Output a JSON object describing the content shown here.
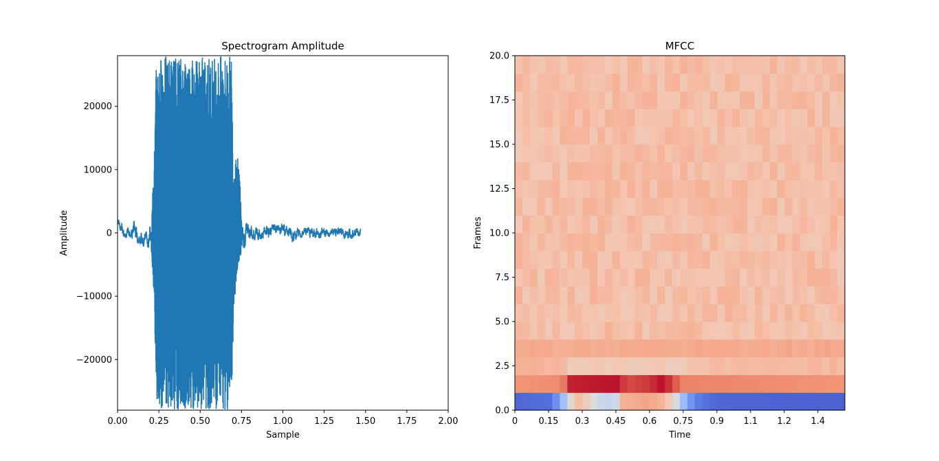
{
  "chart_data": [
    {
      "type": "line",
      "title": "Spectrogram Amplitude",
      "xlabel": "Sample",
      "ylabel": "Amplitude",
      "xlim": [
        0,
        2
      ],
      "ylim": [
        -28000,
        28000
      ],
      "x_ticks": [
        0,
        0.25,
        0.5,
        0.75,
        1.0,
        1.25,
        1.5,
        1.75,
        2.0
      ],
      "x_tick_labels": [
        "0.00",
        "0.25",
        "0.50",
        "0.75",
        "1.00",
        "1.25",
        "1.50",
        "1.75",
        "2.00"
      ],
      "y_ticks": [
        -20000,
        -10000,
        0,
        10000,
        20000
      ],
      "y_tick_labels": [
        "−20000",
        "−10000",
        "0",
        "10000",
        "20000"
      ],
      "color": "#1f77b4",
      "grid": false,
      "series": [
        {
          "envelope": {
            "x": [
              0,
              0.03,
              0.06,
              0.09,
              0.1,
              0.12,
              0.15,
              0.18,
              0.2,
              0.22,
              0.235,
              0.25,
              0.28,
              0.32,
              0.36,
              0.42,
              0.5,
              0.58,
              0.62,
              0.66,
              0.69,
              0.7,
              0.72,
              0.74,
              0.76,
              0.78,
              0.82,
              0.9,
              1.0,
              1.05,
              1.1,
              1.2,
              1.3,
              1.4,
              1.47
            ],
            "upper": [
              2800,
              1500,
              800,
              1200,
              3800,
              500,
              300,
              200,
              1500,
              9500,
              28000,
              28000,
              28000,
              28000,
              28000,
              28000,
              28000,
              28000,
              28000,
              28000,
              28000,
              10000,
              13500,
              9000,
              1200,
              1500,
              1000,
              1200,
              1500,
              600,
              700,
              900,
              700,
              700,
              700
            ],
            "lower": [
              1500,
              -500,
              -800,
              -1200,
              -500,
              -1500,
              -2000,
              -2000,
              -3500,
              -9500,
              -28000,
              -28000,
              -28000,
              -28000,
              -28000,
              -28000,
              -28000,
              -28000,
              -28000,
              -28000,
              -28000,
              -15000,
              -6500,
              -4000,
              -3000,
              -1500,
              -1200,
              -800,
              -300,
              -1600,
              -700,
              -800,
              -700,
              -900,
              -700
            ]
          }
        }
      ]
    },
    {
      "type": "heatmap",
      "title": "MFCC",
      "xlabel": "Time",
      "ylabel": "Frames",
      "xlim": [
        0,
        1.47
      ],
      "ylim": [
        0,
        20
      ],
      "x_ticks": [
        0,
        0.15,
        0.3,
        0.45,
        0.6,
        0.75,
        0.9,
        1.05,
        1.2,
        1.35
      ],
      "x_tick_labels": [
        "0",
        "0.15",
        "0.3",
        "0.45",
        "0.6",
        "0.75",
        "0.9",
        "1.1",
        "1.2",
        "1.4"
      ],
      "y_ticks": [
        0,
        2.5,
        5.0,
        7.5,
        10.0,
        12.5,
        15.0,
        17.5,
        20.0
      ],
      "y_tick_labels": [
        "0.0",
        "2.5",
        "5.0",
        "7.5",
        "10.0",
        "12.5",
        "15.0",
        "17.5",
        "20.0"
      ],
      "colormap": "coolwarm",
      "rows": 20,
      "cols": 44,
      "row_profiles": [
        {
          "row": 0,
          "values_by_time": {
            "x": [
              0,
              0.15,
              0.2,
              0.23,
              0.27,
              0.3,
              0.38,
              0.42,
              0.45,
              0.48,
              0.6,
              0.65,
              0.7,
              0.75,
              0.8,
              0.9,
              1.47
            ],
            "v": [
              0.06,
              0.08,
              0.2,
              0.4,
              0.66,
              0.62,
              0.45,
              0.42,
              0.45,
              0.68,
              0.72,
              0.68,
              0.58,
              0.3,
              0.12,
              0.06,
              0.05
            ]
          }
        },
        {
          "row": 1,
          "values_by_time": {
            "x": [
              0,
              0.2,
              0.23,
              0.25,
              0.45,
              0.5,
              0.6,
              0.65,
              0.7,
              0.75,
              1.47
            ],
            "v": [
              0.76,
              0.78,
              0.85,
              0.96,
              0.98,
              0.9,
              0.93,
              0.98,
              0.92,
              0.8,
              0.76
            ]
          }
        },
        {
          "row": 2,
          "values_by_time": {
            "x": [
              0,
              0.23,
              0.25,
              0.75,
              0.8,
              1.47
            ],
            "v": [
              0.68,
              0.66,
              0.6,
              0.6,
              0.64,
              0.66
            ]
          }
        },
        {
          "row": 3,
          "values_by_time": {
            "x": [
              0,
              0.5,
              1.47
            ],
            "v": [
              0.7,
              0.7,
              0.7
            ]
          }
        },
        {
          "row": 4,
          "default": 0.64
        }
      ]
    }
  ]
}
